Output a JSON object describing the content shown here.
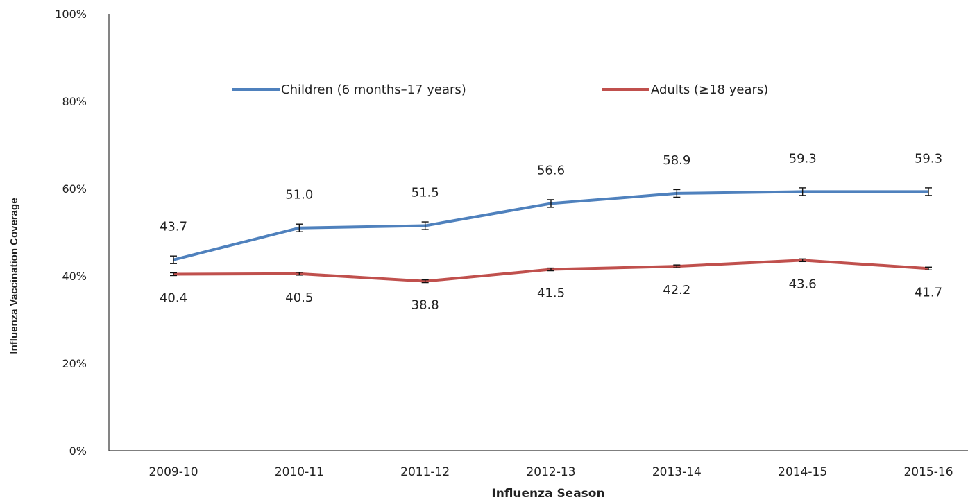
{
  "chart_data": {
    "type": "line",
    "title": "",
    "xlabel": "Influenza Season",
    "ylabel": "Influenza Vaccination Coverage",
    "categories": [
      "2009-10",
      "2010-11",
      "2011-12",
      "2012-13",
      "2013-14",
      "2014-15",
      "2015-16"
    ],
    "ylim": [
      0,
      100
    ],
    "yticks": [
      "0%",
      "20%",
      "40%",
      "60%",
      "80%",
      "100%"
    ],
    "grid": false,
    "legend_position": "top-center",
    "error_bars": true,
    "series": [
      {
        "name": "Children (6 months–17 years)",
        "color": "#4f81bd",
        "values": [
          43.7,
          51.0,
          51.5,
          56.6,
          58.9,
          59.3,
          59.3
        ],
        "labels": [
          "43.7",
          "51.0",
          "51.5",
          "56.6",
          "58.9",
          "59.3",
          "59.3"
        ],
        "label_position": "above"
      },
      {
        "name": "Adults (≥18 years)",
        "color": "#c0504d",
        "values": [
          40.4,
          40.5,
          38.8,
          41.5,
          42.2,
          43.6,
          41.7
        ],
        "labels": [
          "40.4",
          "40.5",
          "38.8",
          "41.5",
          "42.2",
          "43.6",
          "41.7"
        ],
        "label_position": "below"
      }
    ]
  }
}
